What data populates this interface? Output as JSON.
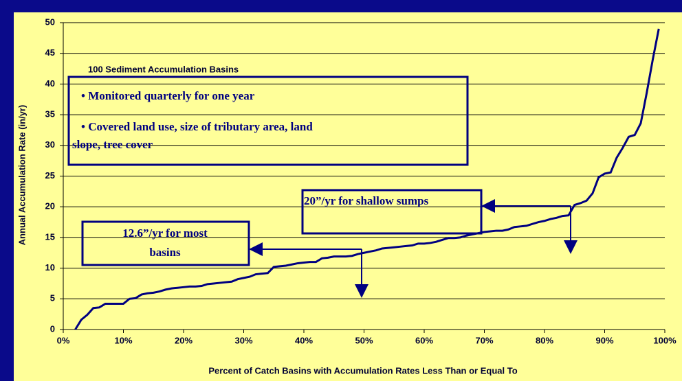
{
  "chart_data": {
    "type": "line",
    "xlabel": "Percent of Catch Basins with Accumulation Rates Less Than or Equal To",
    "ylabel": "Annual Accumulation Rate (in/yr)",
    "x": [
      2,
      3,
      4,
      5,
      6,
      7,
      8,
      9,
      10,
      11,
      12,
      13,
      14,
      15,
      16,
      17,
      18,
      19,
      20,
      21,
      22,
      23,
      24,
      25,
      26,
      27,
      28,
      29,
      30,
      31,
      32,
      33,
      34,
      35,
      36,
      37,
      38,
      39,
      40,
      41,
      42,
      43,
      44,
      45,
      46,
      47,
      48,
      49,
      50,
      51,
      52,
      53,
      54,
      55,
      56,
      57,
      58,
      59,
      60,
      61,
      62,
      63,
      64,
      65,
      66,
      67,
      68,
      69,
      70,
      71,
      72,
      73,
      74,
      75,
      76,
      77,
      78,
      79,
      80,
      81,
      82,
      83,
      84,
      85,
      86,
      87,
      88,
      89,
      90,
      91,
      92,
      93,
      94,
      95,
      96,
      97,
      98,
      99
    ],
    "series": [
      {
        "color": "#000080",
        "values": [
          0,
          1.6,
          2.4,
          3.5,
          3.6,
          4.2,
          4.2,
          4.2,
          4.2,
          5,
          5.1,
          5.7,
          5.9,
          6,
          6.2,
          6.5,
          6.7,
          6.8,
          6.9,
          7,
          7,
          7.1,
          7.4,
          7.5,
          7.6,
          7.7,
          7.8,
          8.2,
          8.4,
          8.6,
          9,
          9.1,
          9.2,
          10.2,
          10.3,
          10.4,
          10.6,
          10.8,
          10.9,
          11,
          11,
          11.6,
          11.7,
          11.9,
          11.9,
          11.9,
          12,
          12.3,
          12.5,
          12.7,
          12.9,
          13.2,
          13.3,
          13.4,
          13.5,
          13.6,
          13.7,
          14,
          14,
          14.1,
          14.3,
          14.6,
          14.9,
          14.9,
          15,
          15.3,
          15.5,
          15.7,
          15.9,
          16,
          16.1,
          16.1,
          16.3,
          16.7,
          16.8,
          16.9,
          17.2,
          17.5,
          17.7,
          18,
          18.2,
          18.5,
          18.6,
          20.3,
          20.6,
          21,
          22.2,
          24.8,
          25.4,
          25.6,
          28,
          29.6,
          31.4,
          31.7,
          33.6,
          38.6,
          44,
          49
        ]
      }
    ],
    "xlim": [
      0,
      100
    ],
    "xticks": [
      {
        "value": 0,
        "label": "0%"
      },
      {
        "value": 10,
        "label": "10%"
      },
      {
        "value": 20,
        "label": "20%"
      },
      {
        "value": 30,
        "label": "30%"
      },
      {
        "value": 40,
        "label": "40%"
      },
      {
        "value": 50,
        "label": "50%"
      },
      {
        "value": 60,
        "label": "60%"
      },
      {
        "value": 70,
        "label": "70%"
      },
      {
        "value": 80,
        "label": "80%"
      },
      {
        "value": 90,
        "label": "90%"
      },
      {
        "value": 100,
        "label": "100%"
      }
    ],
    "ylim": [
      0,
      50
    ],
    "yticks": [
      0,
      5,
      10,
      15,
      20,
      25,
      30,
      35,
      40,
      45,
      50
    ],
    "grid": true,
    "annotations": [
      {
        "title": "100 Sediment Accumulation Basins",
        "lines": [
          "• Monitored quarterly for one year",
          "• Covered land use,  size of tributary area, land",
          "slope, tree cover"
        ]
      },
      {
        "lines": [
          "20”/yr for shallow sumps"
        ]
      },
      {
        "lines": [
          "12.6”/yr for most",
          "basins"
        ]
      }
    ]
  }
}
